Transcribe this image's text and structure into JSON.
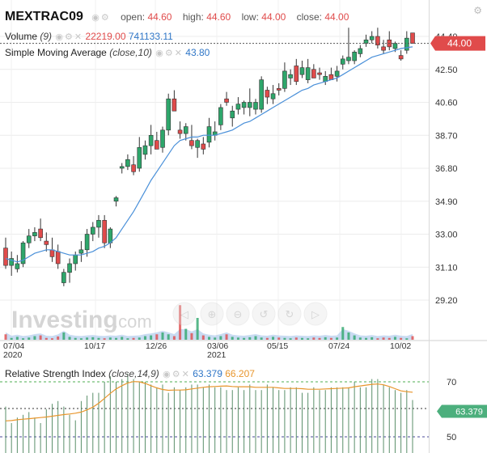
{
  "symbol": "MEXTRAC09",
  "ohlc": {
    "open_label": "open:",
    "open": "44.60",
    "high_label": "high:",
    "high": "44.60",
    "low_label": "low:",
    "low": "44.00",
    "close_label": "close:",
    "close": "44.00"
  },
  "volume_legend": {
    "name": "Volume",
    "param": "(9)",
    "value1": "22219.00",
    "value2": "741133.11"
  },
  "sma_legend": {
    "name": "Simple Moving Average",
    "param": "(close,10)",
    "value": "43.80"
  },
  "rsi_legend": {
    "name": "Relative Strength Index",
    "param": "(close,14,9)",
    "value1": "63.379",
    "value2": "66.207"
  },
  "price_tag": "44.00",
  "rsi_tag": "63.379",
  "watermark": {
    "brand": "Investing",
    "suffix": ".com"
  },
  "colors": {
    "up": "#2ea66b",
    "down": "#e04b4b",
    "sma": "#4a90d9",
    "rsi_signal": "#e8962d",
    "price_tag_bg": "#e04b4b",
    "rsi_tag_bg": "#4caf7d",
    "volume_area": "#b7cfee"
  },
  "chart_data": {
    "type": "candlestick",
    "y_axis_ticks": [
      "44.40",
      "42.50",
      "40.60",
      "38.70",
      "36.80",
      "34.90",
      "33.00",
      "31.10",
      "29.20"
    ],
    "y_axis_values": [
      44.4,
      42.5,
      40.6,
      38.7,
      36.8,
      34.9,
      33.0,
      31.1,
      29.2
    ],
    "x_ticks": [
      {
        "label": "07/04",
        "sub": "2020"
      },
      {
        "label": "10/17",
        "sub": ""
      },
      {
        "label": "12/26",
        "sub": ""
      },
      {
        "label": "03/06",
        "sub": "2021"
      },
      {
        "label": "05/15",
        "sub": ""
      },
      {
        "label": "07/24",
        "sub": ""
      },
      {
        "label": "10/02",
        "sub": ""
      }
    ],
    "candles": [
      {
        "o": 32.2,
        "h": 32.8,
        "l": 31.0,
        "c": 31.2
      },
      {
        "o": 31.2,
        "h": 32.0,
        "l": 30.6,
        "c": 31.6
      },
      {
        "o": 31.0,
        "h": 31.8,
        "l": 30.8,
        "c": 31.3
      },
      {
        "o": 31.3,
        "h": 32.6,
        "l": 31.1,
        "c": 32.5
      },
      {
        "o": 32.5,
        "h": 33.3,
        "l": 32.2,
        "c": 32.9
      },
      {
        "o": 32.9,
        "h": 33.4,
        "l": 32.6,
        "c": 33.1
      },
      {
        "o": 33.3,
        "h": 33.9,
        "l": 32.6,
        "c": 32.8
      },
      {
        "o": 32.6,
        "h": 33.1,
        "l": 32.0,
        "c": 32.4
      },
      {
        "o": 32.1,
        "h": 32.8,
        "l": 31.4,
        "c": 31.7
      },
      {
        "o": 32.0,
        "h": 32.4,
        "l": 31.0,
        "c": 31.3
      },
      {
        "o": 30.2,
        "h": 31.0,
        "l": 30.0,
        "c": 30.8
      },
      {
        "o": 30.8,
        "h": 31.6,
        "l": 30.2,
        "c": 31.3
      },
      {
        "o": 31.3,
        "h": 32.0,
        "l": 30.9,
        "c": 31.8
      },
      {
        "o": 31.9,
        "h": 32.6,
        "l": 31.4,
        "c": 32.1
      },
      {
        "o": 32.1,
        "h": 33.3,
        "l": 31.7,
        "c": 33.0
      },
      {
        "o": 33.0,
        "h": 33.7,
        "l": 32.6,
        "c": 33.4
      },
      {
        "o": 33.4,
        "h": 34.1,
        "l": 32.8,
        "c": 33.8
      },
      {
        "o": 33.8,
        "h": 34.1,
        "l": 32.2,
        "c": 32.5
      },
      {
        "o": 32.5,
        "h": 33.4,
        "l": 32.2,
        "c": 33.3
      },
      {
        "o": 34.9,
        "h": 35.2,
        "l": 34.6,
        "c": 35.1
      },
      {
        "o": 36.8,
        "h": 37.1,
        "l": 36.5,
        "c": 36.9
      },
      {
        "o": 36.9,
        "h": 37.6,
        "l": 36.7,
        "c": 37.3
      },
      {
        "o": 37.0,
        "h": 37.5,
        "l": 36.4,
        "c": 36.6
      },
      {
        "o": 36.8,
        "h": 38.6,
        "l": 36.6,
        "c": 38.0
      },
      {
        "o": 37.6,
        "h": 38.4,
        "l": 37.3,
        "c": 38.1
      },
      {
        "o": 38.1,
        "h": 39.3,
        "l": 37.6,
        "c": 38.7
      },
      {
        "o": 38.4,
        "h": 38.9,
        "l": 37.9,
        "c": 37.9
      },
      {
        "o": 38.0,
        "h": 39.2,
        "l": 37.7,
        "c": 39.0
      },
      {
        "o": 39.0,
        "h": 41.1,
        "l": 38.7,
        "c": 40.8
      },
      {
        "o": 40.8,
        "h": 41.3,
        "l": 40.1,
        "c": 40.1
      },
      {
        "o": 39.0,
        "h": 39.5,
        "l": 38.5,
        "c": 38.8
      },
      {
        "o": 38.8,
        "h": 39.4,
        "l": 38.4,
        "c": 39.2
      },
      {
        "o": 38.4,
        "h": 39.3,
        "l": 37.9,
        "c": 38.1
      },
      {
        "o": 38.0,
        "h": 38.5,
        "l": 37.4,
        "c": 38.4
      },
      {
        "o": 38.2,
        "h": 38.6,
        "l": 37.6,
        "c": 37.9
      },
      {
        "o": 38.3,
        "h": 39.7,
        "l": 38.0,
        "c": 39.2
      },
      {
        "o": 38.7,
        "h": 39.5,
        "l": 38.4,
        "c": 38.9
      },
      {
        "o": 39.3,
        "h": 40.5,
        "l": 39.0,
        "c": 40.3
      },
      {
        "o": 40.8,
        "h": 41.2,
        "l": 40.4,
        "c": 40.6
      },
      {
        "o": 39.7,
        "h": 40.4,
        "l": 39.2,
        "c": 40.1
      },
      {
        "o": 40.2,
        "h": 40.9,
        "l": 39.9,
        "c": 40.5
      },
      {
        "o": 40.3,
        "h": 40.7,
        "l": 39.9,
        "c": 40.6
      },
      {
        "o": 40.3,
        "h": 41.4,
        "l": 39.8,
        "c": 40.6
      },
      {
        "o": 40.2,
        "h": 40.8,
        "l": 39.9,
        "c": 40.6
      },
      {
        "o": 40.2,
        "h": 42.1,
        "l": 40.0,
        "c": 41.9
      },
      {
        "o": 41.3,
        "h": 41.5,
        "l": 40.5,
        "c": 40.9
      },
      {
        "o": 40.8,
        "h": 41.6,
        "l": 40.5,
        "c": 41.1
      },
      {
        "o": 41.4,
        "h": 41.7,
        "l": 41.0,
        "c": 41.3
      },
      {
        "o": 41.4,
        "h": 42.9,
        "l": 41.2,
        "c": 42.4
      },
      {
        "o": 42.0,
        "h": 42.5,
        "l": 41.6,
        "c": 42.2
      },
      {
        "o": 42.7,
        "h": 43.1,
        "l": 41.6,
        "c": 41.8
      },
      {
        "o": 42.2,
        "h": 43.0,
        "l": 42.0,
        "c": 42.6
      },
      {
        "o": 41.9,
        "h": 43.1,
        "l": 41.7,
        "c": 42.6
      },
      {
        "o": 42.5,
        "h": 42.8,
        "l": 42.0,
        "c": 42.0
      },
      {
        "o": 42.3,
        "h": 42.6,
        "l": 41.9,
        "c": 42.2
      },
      {
        "o": 41.8,
        "h": 42.4,
        "l": 41.6,
        "c": 42.1
      },
      {
        "o": 42.2,
        "h": 42.6,
        "l": 41.9,
        "c": 41.9
      },
      {
        "o": 42.1,
        "h": 42.7,
        "l": 41.8,
        "c": 42.4
      },
      {
        "o": 42.8,
        "h": 43.3,
        "l": 42.5,
        "c": 43.1
      },
      {
        "o": 43.0,
        "h": 44.9,
        "l": 42.8,
        "c": 43.2
      },
      {
        "o": 43.0,
        "h": 43.6,
        "l": 42.8,
        "c": 43.5
      },
      {
        "o": 43.4,
        "h": 43.9,
        "l": 43.2,
        "c": 43.7
      },
      {
        "o": 44.0,
        "h": 44.5,
        "l": 43.8,
        "c": 44.2
      },
      {
        "o": 44.2,
        "h": 44.7,
        "l": 44.0,
        "c": 44.4
      },
      {
        "o": 44.4,
        "h": 44.9,
        "l": 43.7,
        "c": 43.9
      },
      {
        "o": 43.8,
        "h": 44.2,
        "l": 43.4,
        "c": 43.6
      },
      {
        "o": 44.2,
        "h": 44.7,
        "l": 43.6,
        "c": 43.8
      },
      {
        "o": 43.7,
        "h": 44.1,
        "l": 43.5,
        "c": 44.0
      },
      {
        "o": 43.3,
        "h": 43.6,
        "l": 43.0,
        "c": 43.1
      },
      {
        "o": 43.6,
        "h": 44.7,
        "l": 43.4,
        "c": 44.3
      },
      {
        "o": 44.6,
        "h": 44.6,
        "l": 44.0,
        "c": 44.0
      }
    ],
    "sma": [
      31.6,
      31.5,
      31.4,
      31.5,
      31.7,
      31.9,
      32.0,
      32.1,
      32.1,
      32.0,
      31.9,
      31.8,
      31.8,
      31.8,
      31.9,
      32.0,
      32.2,
      32.3,
      32.5,
      32.8,
      33.3,
      33.8,
      34.3,
      34.9,
      35.5,
      36.1,
      36.6,
      37.1,
      37.6,
      38.1,
      38.4,
      38.5,
      38.6,
      38.6,
      38.7,
      38.7,
      38.7,
      38.8,
      38.9,
      39.0,
      39.2,
      39.4,
      39.5,
      39.7,
      39.9,
      40.1,
      40.3,
      40.5,
      40.7,
      40.9,
      41.1,
      41.3,
      41.4,
      41.6,
      41.7,
      41.8,
      41.9,
      42.0,
      42.2,
      42.4,
      42.6,
      42.8,
      43.0,
      43.2,
      43.3,
      43.4,
      43.5,
      43.6,
      43.7,
      43.75,
      43.8
    ],
    "volume": [
      0.15,
      0.05,
      0.08,
      0.04,
      0.06,
      0.1,
      0.12,
      0.05,
      0.04,
      0.09,
      0.2,
      0.08,
      0.05,
      0.04,
      0.06,
      0.07,
      0.05,
      0.04,
      0.06,
      0.05,
      0.08,
      0.04,
      0.05,
      0.06,
      0.1,
      0.12,
      0.15,
      0.2,
      0.15,
      0.1,
      0.95,
      0.3,
      0.18,
      0.6,
      0.12,
      0.08,
      0.06,
      0.1,
      0.15,
      0.08,
      0.06,
      0.05,
      0.07,
      0.1,
      0.06,
      0.05,
      0.08,
      0.06,
      0.05,
      0.04,
      0.06,
      0.05,
      0.04,
      0.06,
      0.05,
      0.07,
      0.05,
      0.06,
      0.35,
      0.2,
      0.12,
      0.06,
      0.05,
      0.07,
      0.04,
      0.06,
      0.05,
      0.08,
      0.05,
      0.04,
      0.1
    ],
    "rsi_y_ticks": [
      70,
      50
    ],
    "rsi": [
      61,
      55,
      57,
      58,
      59,
      57,
      55,
      60,
      62,
      63,
      61,
      58,
      56,
      63,
      65,
      66,
      66,
      70,
      72,
      70,
      71,
      73,
      71,
      70,
      70,
      69,
      68,
      69,
      66,
      68,
      67,
      68,
      69,
      69,
      68,
      69,
      68,
      68,
      67,
      67,
      68,
      67,
      69,
      67,
      67,
      69,
      68,
      67,
      67,
      68,
      68,
      66,
      66,
      68,
      67,
      67,
      68,
      68,
      68,
      68,
      70,
      68,
      68,
      71,
      71,
      69,
      68,
      67,
      66,
      67,
      63.379
    ],
    "rsi_signal": [
      55.8,
      55.9,
      56.2,
      56.4,
      56.6,
      56.8,
      57,
      57.2,
      57.5,
      57.8,
      58.1,
      58.3,
      58.6,
      59,
      59.8,
      60.8,
      62.2,
      64,
      65.8,
      67.4,
      68.6,
      69.6,
      70.1,
      70,
      69.4,
      68.6,
      67.8,
      67.2,
      66.9,
      67,
      67,
      67.1,
      67.4,
      67.7,
      68,
      68.2,
      68.3,
      68.4,
      68.5,
      68.3,
      68.2,
      68.2,
      68.2,
      68,
      68,
      68,
      68,
      67.8,
      67.6,
      67.6,
      67.6,
      67.5,
      67.3,
      67.3,
      67.3,
      67.4,
      67.5,
      67.6,
      67.7,
      67.8,
      68.2,
      68.5,
      68.8,
      69.1,
      69.2,
      68.9,
      68.3,
      67.5,
      66.7,
      66.4,
      66.207
    ]
  }
}
